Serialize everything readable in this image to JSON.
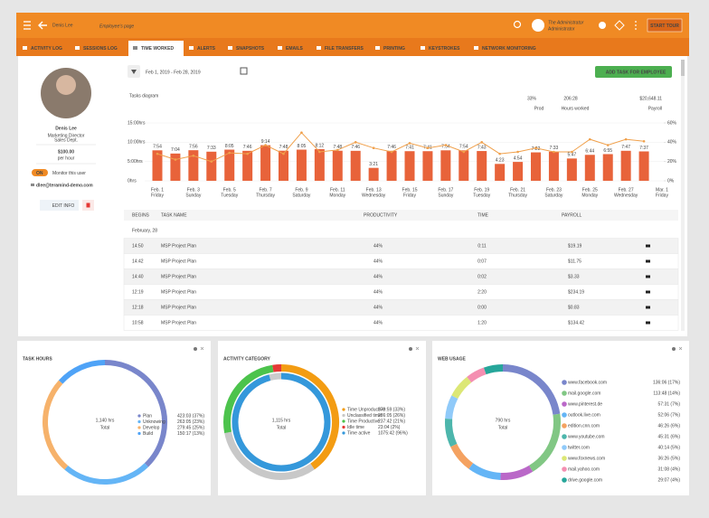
{
  "header": {
    "name": "Denis Lee",
    "subtitle": "Employee's page",
    "user": "The Administrator",
    "role": "Administrator",
    "tour": "START TOUR"
  },
  "tabs": [
    "ACTIVITY LOG",
    "SESSIONS LOG",
    "TIME WORKED",
    "ALERTS",
    "SNAPSHOTS",
    "EMAILS",
    "FILE TRANSFERS",
    "PRINTING",
    "KEYSTROKES",
    "NETWORK MONITORING"
  ],
  "active_tab": 2,
  "date_range": "Feb 1, 2019 - Feb 28, 2019",
  "add_task": "ADD TASK FOR EMPLOYEE",
  "profile": {
    "name": "Denis Lee",
    "position": "Marketing Director",
    "department": "Sales Dept.",
    "rate": "$100.00",
    "rate_unit": "per hour",
    "toggle": "ON",
    "monitor": "Monitor this user",
    "email": "dlee@teramind-demo.com",
    "edit": "EDIT INFO"
  },
  "summary": {
    "title": "Tasks diagram",
    "productivity": "33%",
    "hours": "206:28",
    "payroll": "$20,648.11",
    "productivity_label": "Prod",
    "hours_label": "Hours worked",
    "payroll_label": "Payroll"
  },
  "chart_data": {
    "type": "bar",
    "categories": [
      "Feb. 1",
      null,
      "Feb. 3",
      null,
      "Feb. 5",
      null,
      "Feb. 7",
      null,
      "Feb. 9",
      null,
      "Feb. 11",
      null,
      "Feb. 13",
      null,
      "Feb. 15",
      null,
      "Feb. 17",
      null,
      "Feb. 19",
      null,
      "Feb. 21",
      null,
      "Feb. 23",
      null,
      "Feb. 25",
      null,
      "Feb. 27",
      null,
      "Mar. 1"
    ],
    "weekdays": [
      "Friday",
      null,
      "Sunday",
      null,
      "Tuesday",
      null,
      "Thursday",
      null,
      "Saturday",
      null,
      "Monday",
      null,
      "Wednesday",
      null,
      "Friday",
      null,
      "Sunday",
      null,
      "Tuesday",
      null,
      "Thursday",
      null,
      "Saturday",
      null,
      "Monday",
      null,
      "Wednesday",
      null,
      "Friday"
    ],
    "series": [
      {
        "type": "bar",
        "color": "#e8633a",
        "values": [
          7.9,
          7.07,
          7.93,
          7.55,
          8.08,
          7.77,
          9.23,
          7.8,
          8.08,
          8.2,
          7.8,
          7.77,
          3.35,
          7.77,
          7.68,
          7.68,
          7.9,
          7.9,
          7.72,
          4.38,
          4.9,
          7.37,
          7.55,
          5.78,
          6.73,
          6.92,
          7.78,
          7.62,
          null
        ],
        "value_labels": [
          "7:54",
          "7:04",
          "7:56",
          "7:33",
          "8:05",
          "7:46",
          "9:14",
          "7:48",
          "8:05",
          "8:12",
          "7:48",
          "7:46",
          "3:21",
          "7:46",
          "7:41",
          "7:41",
          "7:54",
          "7:54",
          "7:43",
          "4:23",
          "4:54",
          "7:22",
          "7:33",
          "5:47",
          "6:44",
          "6:55",
          "7:47",
          "7:37",
          null
        ]
      },
      {
        "type": "line",
        "axis": "y2",
        "color": "#f0a04b",
        "values": [
          28,
          22,
          26,
          20,
          29,
          28,
          37,
          28,
          50,
          30,
          32,
          40,
          34,
          30,
          39,
          34,
          37,
          30,
          40,
          28,
          30,
          34,
          30,
          30,
          43,
          37,
          43,
          41,
          null
        ]
      }
    ],
    "ylim": [
      0,
      15
    ],
    "yticks": [
      {
        "value": 0,
        "label": "0hrs"
      },
      {
        "value": 5,
        "label": "5:00hrs"
      },
      {
        "value": 10,
        "label": "10:00hrs"
      },
      {
        "value": 15,
        "label": "15:00hrs"
      }
    ],
    "y2lim": [
      0,
      60
    ],
    "y2ticks": [
      {
        "value": 0,
        "label": "0%"
      },
      {
        "value": 20,
        "label": "20%"
      },
      {
        "value": 40,
        "label": "40%"
      },
      {
        "value": 60,
        "label": "60%"
      }
    ],
    "grid": true
  },
  "table": {
    "headers": [
      "BEGINS",
      "TASK NAME",
      "PRODUCTIVITY",
      "TIME",
      "PAYROLL"
    ],
    "group": "February, 28",
    "rows": [
      [
        "14:50",
        "MSP Project Plan",
        "44%",
        "0:11",
        "$19.19"
      ],
      [
        "14:42",
        "MSP Project Plan",
        "44%",
        "0:07",
        "$11.75"
      ],
      [
        "14:40",
        "MSP Project Plan",
        "44%",
        "0:02",
        "$3.33"
      ],
      [
        "12:19",
        "MSP Project Plan",
        "44%",
        "2:20",
        "$234.19"
      ],
      [
        "12:18",
        "MSP Project Plan",
        "44%",
        "0:00",
        "$0.83"
      ],
      [
        "10:58",
        "MSP Project Plan",
        "44%",
        "1:20",
        "$134.42"
      ]
    ]
  },
  "widgets": [
    {
      "title": "TASK HOURS",
      "total": "1,140 hrs",
      "total_label": "Total",
      "items": [
        {
          "name": "Plan",
          "color": "#7986cb",
          "value": 37,
          "label": "423:03 (37%)"
        },
        {
          "name": "Unknowing",
          "color": "#64b5f6",
          "value": 23,
          "label": "263:05 (23%)"
        },
        {
          "name": "Develop",
          "color": "#f6b26b",
          "value": 25,
          "label": "279:45 (25%)"
        },
        {
          "name": "Build",
          "color": "#4fa3f7",
          "value": 13,
          "label": "150:17 (13%)"
        }
      ]
    },
    {
      "title": "ACTIVITY CATEGORY",
      "total": "1,115 hrs",
      "total_label": "Total",
      "items": [
        {
          "name": "Time Unproductive",
          "color": "#f39c12",
          "value": 33,
          "label": "370:59 (33%)"
        },
        {
          "name": "Unclassified time",
          "color": "#c8c8c8",
          "value": 26,
          "label": "286:05 (26%)"
        },
        {
          "name": "Time Productive",
          "color": "#4cc34c",
          "value": 21,
          "label": "237:42 (21%)"
        },
        {
          "name": "Idle time",
          "color": "#e53935",
          "value": 2,
          "label": "23:04 (2%)"
        },
        {
          "name": "Time active",
          "color": "#3498db",
          "value": 96,
          "label": "1075:42 (96%)",
          "ring": "inner"
        }
      ]
    },
    {
      "title": "WEB USAGE",
      "total": "790 hrs",
      "total_label": "Total",
      "items": [
        {
          "name": "www.facebook.com",
          "color": "#7986cb",
          "value": 17,
          "label": "136:06 (17%)"
        },
        {
          "name": "mail.google.com",
          "color": "#81c784",
          "value": 14,
          "label": "113:48 (14%)"
        },
        {
          "name": "www.pinterest.de",
          "color": "#ba68c8",
          "value": 7,
          "label": "57:31 (7%)"
        },
        {
          "name": "outlook.live.com",
          "color": "#64b5f6",
          "value": 7,
          "label": "52:06 (7%)"
        },
        {
          "name": "edition.cnn.com",
          "color": "#f4a261",
          "value": 6,
          "label": "46:26 (6%)"
        },
        {
          "name": "www.youtube.com",
          "color": "#4db6ac",
          "value": 6,
          "label": "45:31 (6%)"
        },
        {
          "name": "twitter.com",
          "color": "#90caf9",
          "value": 5,
          "label": "40:14 (5%)"
        },
        {
          "name": "www.foxnews.com",
          "color": "#dce775",
          "value": 5,
          "label": "36:26 (5%)"
        },
        {
          "name": "mail.yahoo.com",
          "color": "#f48fb1",
          "value": 4,
          "label": "31:08 (4%)"
        },
        {
          "name": "drive.google.com",
          "color": "#26a69a",
          "value": 4,
          "label": "29:07 (4%)"
        }
      ]
    }
  ]
}
